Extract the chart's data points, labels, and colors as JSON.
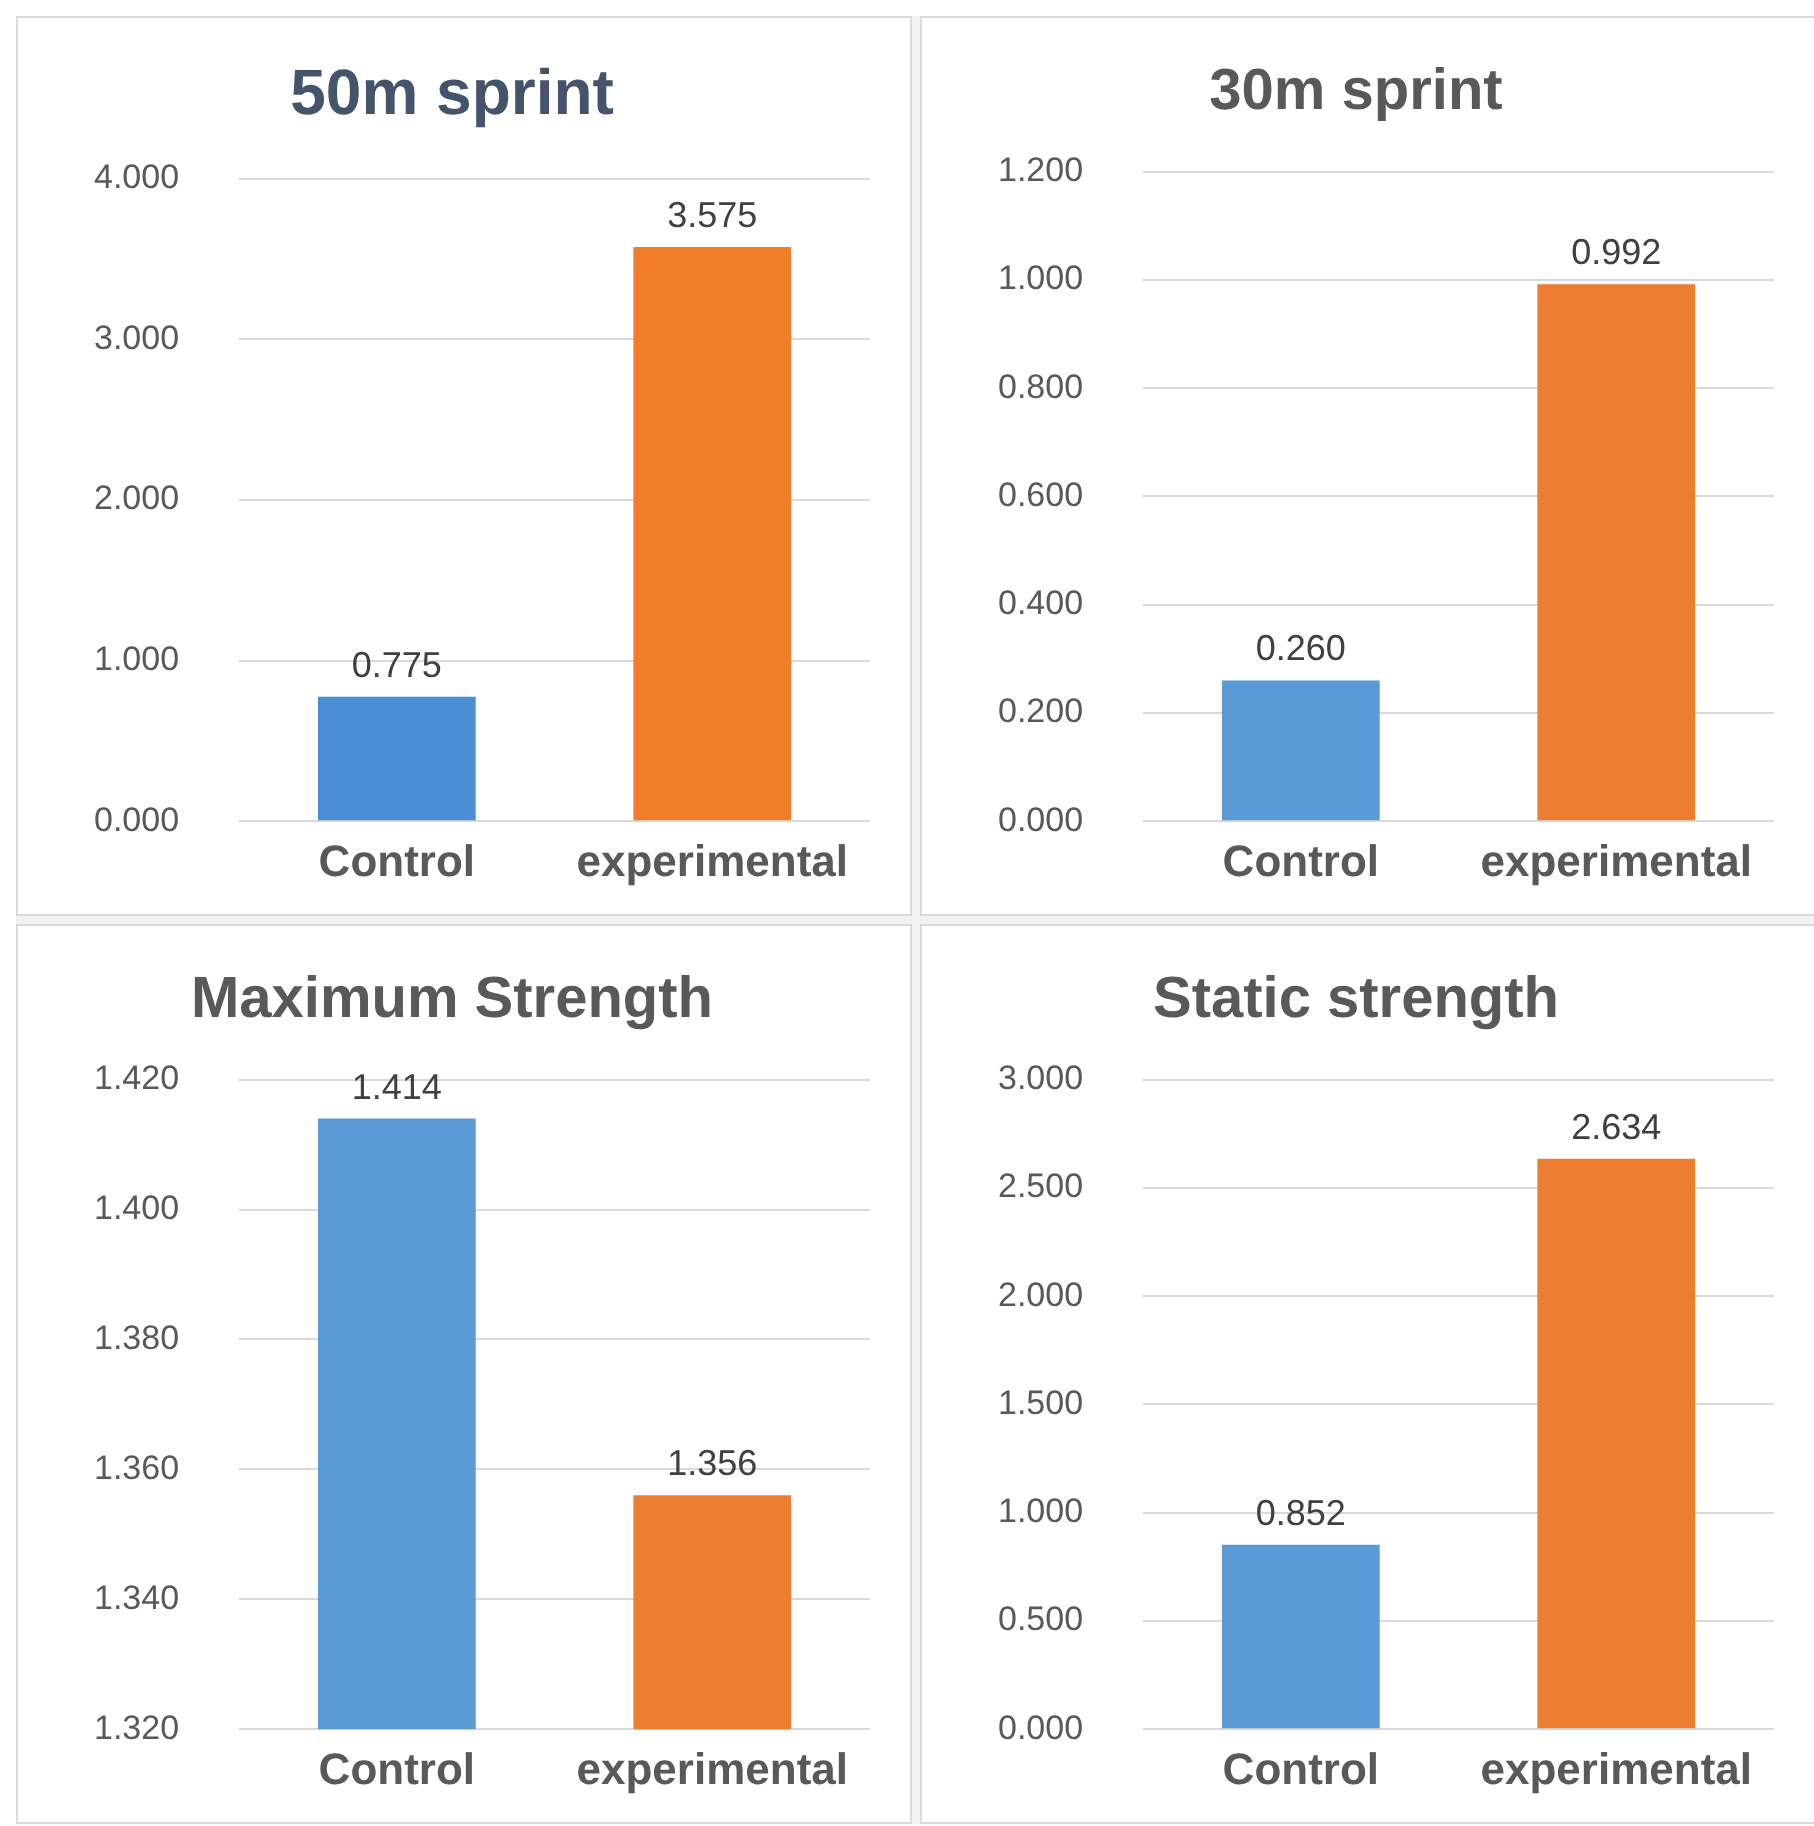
{
  "chart_data": [
    {
      "type": "bar",
      "title": "50m sprint",
      "categories": [
        "Control",
        "experimental"
      ],
      "values": [
        0.775,
        3.575
      ],
      "colors": [
        "#4a8fd6",
        "#f27d28"
      ],
      "ylim": [
        0,
        4
      ],
      "yticks": [
        {
          "value": 0,
          "label": "0.000"
        },
        {
          "value": 1,
          "label": "1.000"
        },
        {
          "value": 2,
          "label": "2.000"
        },
        {
          "value": 3,
          "label": "3.000"
        },
        {
          "value": 4,
          "label": "4.000"
        }
      ],
      "grid": "y",
      "value_labels": [
        "0.775",
        "3.575"
      ]
    },
    {
      "type": "bar",
      "title": "30m sprint",
      "categories": [
        "Control",
        "experimental"
      ],
      "values": [
        0.26,
        0.992
      ],
      "colors": [
        "#5b9bd5",
        "#ed7d31"
      ],
      "ylim": [
        0,
        1.2
      ],
      "yticks": [
        {
          "value": 0,
          "label": "0.000"
        },
        {
          "value": 0.2,
          "label": "0.200"
        },
        {
          "value": 0.4,
          "label": "0.400"
        },
        {
          "value": 0.6,
          "label": "0.600"
        },
        {
          "value": 0.8,
          "label": "0.800"
        },
        {
          "value": 1,
          "label": "1.000"
        },
        {
          "value": 1.2,
          "label": "1.200"
        }
      ],
      "grid": "y",
      "value_labels": [
        "0.260",
        "0.992"
      ]
    },
    {
      "type": "bar",
      "title": "Maximum Strength",
      "categories": [
        "Control",
        "experimental"
      ],
      "values": [
        1.414,
        1.356
      ],
      "colors": [
        "#5b9bd5",
        "#ed7d31"
      ],
      "ylim": [
        1.32,
        1.42
      ],
      "yticks": [
        {
          "value": 1.32,
          "label": "1.320"
        },
        {
          "value": 1.34,
          "label": "1.340"
        },
        {
          "value": 1.36,
          "label": "1.360"
        },
        {
          "value": 1.38,
          "label": "1.380"
        },
        {
          "value": 1.4,
          "label": "1.400"
        },
        {
          "value": 1.42,
          "label": "1.420"
        }
      ],
      "grid": "y",
      "value_labels": [
        "1.414",
        "1.356"
      ]
    },
    {
      "type": "bar",
      "title": "Static strength",
      "categories": [
        "Control",
        "experimental"
      ],
      "values": [
        0.852,
        2.634
      ],
      "colors": [
        "#5b9bd5",
        "#ed7d31"
      ],
      "ylim": [
        0,
        3
      ],
      "yticks": [
        {
          "value": 0,
          "label": "0.000"
        },
        {
          "value": 0.5,
          "label": "0.500"
        },
        {
          "value": 1,
          "label": "1.000"
        },
        {
          "value": 1.5,
          "label": "1.500"
        },
        {
          "value": 2,
          "label": "2.000"
        },
        {
          "value": 2.5,
          "label": "2.500"
        },
        {
          "value": 3,
          "label": "3.000"
        }
      ],
      "grid": "y",
      "value_labels": [
        "0.852",
        "2.634"
      ]
    }
  ]
}
